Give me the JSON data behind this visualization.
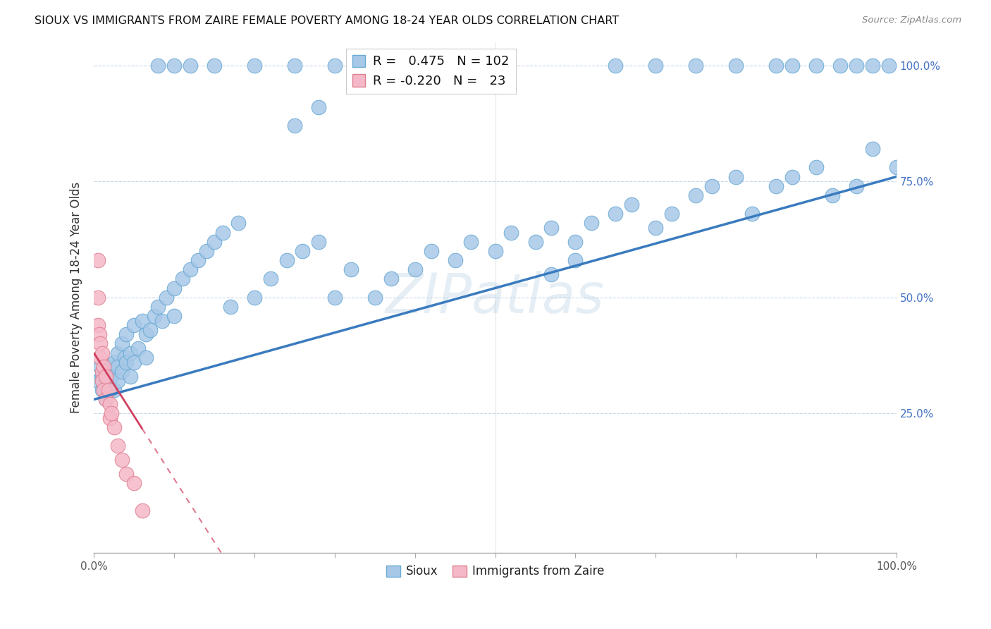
{
  "title": "SIOUX VS IMMIGRANTS FROM ZAIRE FEMALE POVERTY AMONG 18-24 YEAR OLDS CORRELATION CHART",
  "source_text": "Source: ZipAtlas.com",
  "ylabel": "Female Poverty Among 18-24 Year Olds",
  "xlim": [
    0.0,
    1.0
  ],
  "ylim": [
    -0.05,
    1.05
  ],
  "watermark": "ZIPatlas",
  "blue_color": "#a8c8e8",
  "blue_edge_color": "#6aaad4",
  "blue_line_color": "#3a7bbf",
  "pink_color": "#f5b8c8",
  "pink_edge_color": "#e08090",
  "pink_line_color": "#d04060",
  "legend_blue_r": "0.475",
  "legend_blue_n": "102",
  "legend_pink_r": "-0.220",
  "legend_pink_n": "23",
  "blue_trend_x0": 0.0,
  "blue_trend_y0": 0.28,
  "blue_trend_x1": 1.0,
  "blue_trend_y1": 0.76,
  "pink_trend_x0": 0.0,
  "pink_trend_y0": 0.38,
  "pink_trend_x1": 0.14,
  "pink_trend_y1": 0.0,
  "blue_x": [
    0.005,
    0.008,
    0.01,
    0.01,
    0.012,
    0.015,
    0.015,
    0.018,
    0.02,
    0.02,
    0.022,
    0.025,
    0.025,
    0.03,
    0.03,
    0.03,
    0.035,
    0.035,
    0.038,
    0.04,
    0.04,
    0.045,
    0.045,
    0.05,
    0.05,
    0.055,
    0.06,
    0.065,
    0.065,
    0.07,
    0.075,
    0.08,
    0.085,
    0.09,
    0.1,
    0.1,
    0.11,
    0.12,
    0.13,
    0.14,
    0.15,
    0.16,
    0.17,
    0.18,
    0.2,
    0.22,
    0.24,
    0.26,
    0.28,
    0.3,
    0.32,
    0.35,
    0.37,
    0.4,
    0.42,
    0.45,
    0.47,
    0.5,
    0.52,
    0.55,
    0.57,
    0.57,
    0.6,
    0.6,
    0.62,
    0.65,
    0.67,
    0.7,
    0.72,
    0.75,
    0.77,
    0.8,
    0.82,
    0.85,
    0.87,
    0.9,
    0.92,
    0.95,
    0.97,
    1.0,
    0.08,
    0.1,
    0.12,
    0.15,
    0.2,
    0.25,
    0.3,
    0.35,
    0.5,
    0.65,
    0.7,
    0.75,
    0.8,
    0.85,
    0.87,
    0.9,
    0.93,
    0.95,
    0.97,
    0.99,
    0.25,
    0.28
  ],
  "blue_y": [
    0.32,
    0.35,
    0.3,
    0.33,
    0.31,
    0.28,
    0.34,
    0.32,
    0.3,
    0.35,
    0.33,
    0.36,
    0.3,
    0.38,
    0.32,
    0.35,
    0.4,
    0.34,
    0.37,
    0.42,
    0.36,
    0.38,
    0.33,
    0.44,
    0.36,
    0.39,
    0.45,
    0.42,
    0.37,
    0.43,
    0.46,
    0.48,
    0.45,
    0.5,
    0.52,
    0.46,
    0.54,
    0.56,
    0.58,
    0.6,
    0.62,
    0.64,
    0.48,
    0.66,
    0.5,
    0.54,
    0.58,
    0.6,
    0.62,
    0.5,
    0.56,
    0.5,
    0.54,
    0.56,
    0.6,
    0.58,
    0.62,
    0.6,
    0.64,
    0.62,
    0.55,
    0.65,
    0.58,
    0.62,
    0.66,
    0.68,
    0.7,
    0.65,
    0.68,
    0.72,
    0.74,
    0.76,
    0.68,
    0.74,
    0.76,
    0.78,
    0.72,
    0.74,
    0.82,
    0.78,
    1.0,
    1.0,
    1.0,
    1.0,
    1.0,
    1.0,
    1.0,
    1.0,
    1.0,
    1.0,
    1.0,
    1.0,
    1.0,
    1.0,
    1.0,
    1.0,
    1.0,
    1.0,
    1.0,
    1.0,
    0.87,
    0.91
  ],
  "pink_x": [
    0.005,
    0.005,
    0.005,
    0.007,
    0.008,
    0.008,
    0.01,
    0.01,
    0.01,
    0.012,
    0.012,
    0.015,
    0.015,
    0.018,
    0.02,
    0.02,
    0.022,
    0.025,
    0.03,
    0.035,
    0.04,
    0.05,
    0.06
  ],
  "pink_y": [
    0.58,
    0.5,
    0.44,
    0.42,
    0.4,
    0.37,
    0.38,
    0.34,
    0.32,
    0.35,
    0.3,
    0.33,
    0.28,
    0.3,
    0.27,
    0.24,
    0.25,
    0.22,
    0.18,
    0.15,
    0.12,
    0.1,
    0.04
  ]
}
